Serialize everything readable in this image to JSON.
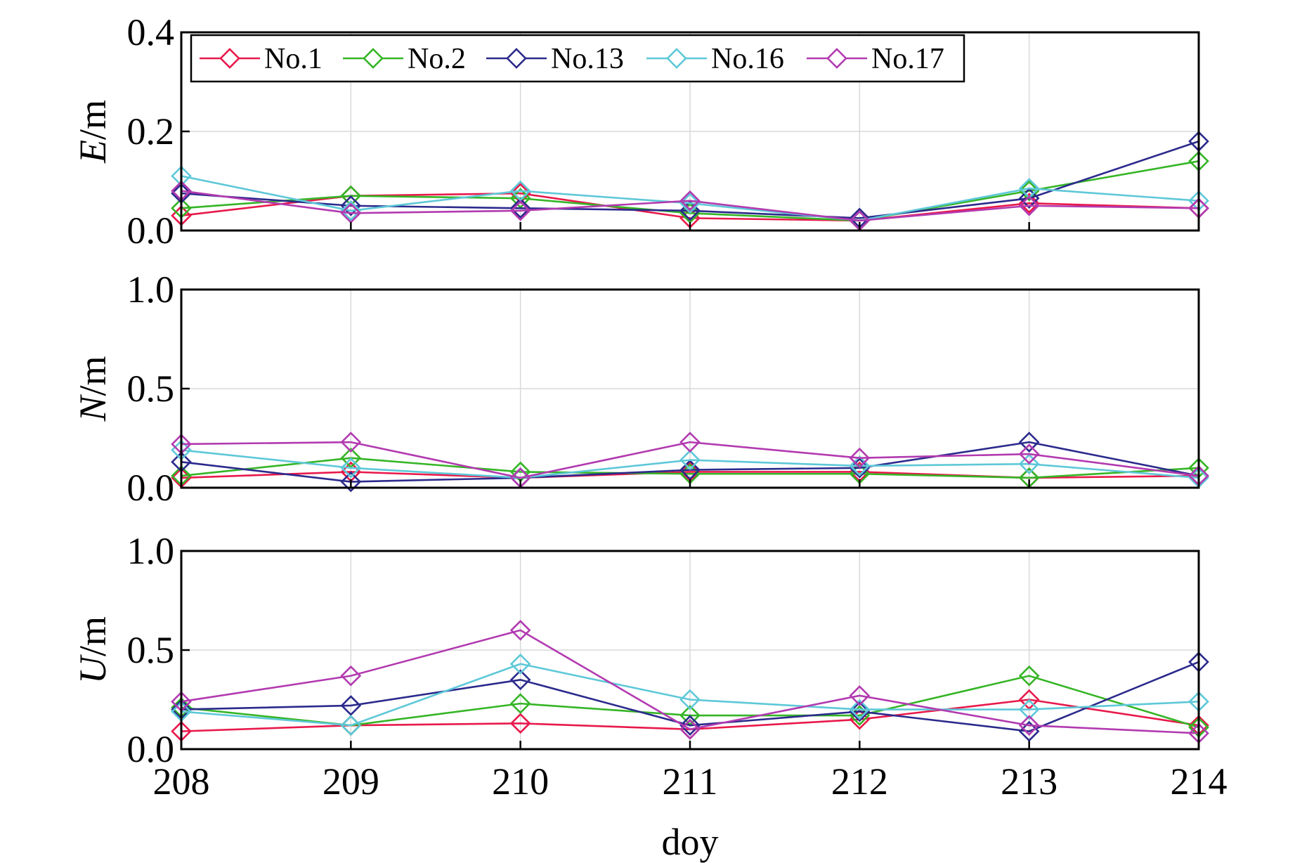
{
  "chart_data": {
    "type": "line",
    "x": [
      208,
      209,
      210,
      211,
      212,
      213,
      214
    ],
    "xlabel": "doy",
    "xlim": [
      208,
      214
    ],
    "grid": true,
    "legend": {
      "position": "top-left",
      "entries": [
        "No.1",
        "No.2",
        "No.13",
        "No.16",
        "No.17"
      ]
    },
    "colors": {
      "No.1": "#e8194b",
      "No.2": "#35b526",
      "No.13": "#2b2a8c",
      "No.16": "#5ec8d8",
      "No.17": "#b23ab0"
    },
    "marker": "diamond",
    "panels": [
      {
        "ylabel_var": "E",
        "ylabel_unit": "/m",
        "ylim": [
          0,
          0.4
        ],
        "yticks": [
          0,
          0.2,
          0.4
        ],
        "ytick_labels": [
          "0.0",
          "0.2",
          "0.4"
        ],
        "series": [
          {
            "name": "No.1",
            "values": [
              0.03,
              0.07,
              0.075,
              0.025,
              0.02,
              0.055,
              0.045
            ]
          },
          {
            "name": "No.2",
            "values": [
              0.045,
              0.07,
              0.065,
              0.035,
              0.02,
              0.08,
              0.14
            ]
          },
          {
            "name": "No.13",
            "values": [
              0.075,
              0.05,
              0.045,
              0.04,
              0.025,
              0.065,
              0.18
            ]
          },
          {
            "name": "No.16",
            "values": [
              0.11,
              0.04,
              0.08,
              0.055,
              0.02,
              0.085,
              0.06
            ]
          },
          {
            "name": "No.17",
            "values": [
              0.08,
              0.035,
              0.04,
              0.06,
              0.02,
              0.05,
              0.045
            ]
          }
        ]
      },
      {
        "ylabel_var": "N",
        "ylabel_unit": "/m",
        "ylim": [
          0,
          1.0
        ],
        "yticks": [
          0,
          0.5,
          1.0
        ],
        "ytick_labels": [
          "0.0",
          "0.5",
          "1.0"
        ],
        "series": [
          {
            "name": "No.1",
            "values": [
              0.05,
              0.08,
              0.05,
              0.08,
              0.08,
              0.05,
              0.06
            ]
          },
          {
            "name": "No.2",
            "values": [
              0.06,
              0.15,
              0.08,
              0.07,
              0.07,
              0.05,
              0.1
            ]
          },
          {
            "name": "No.13",
            "values": [
              0.13,
              0.03,
              0.05,
              0.09,
              0.1,
              0.23,
              0.06
            ]
          },
          {
            "name": "No.16",
            "values": [
              0.19,
              0.1,
              0.05,
              0.14,
              0.11,
              0.12,
              0.05
            ]
          },
          {
            "name": "No.17",
            "values": [
              0.22,
              0.23,
              0.05,
              0.23,
              0.15,
              0.17,
              0.06
            ]
          }
        ]
      },
      {
        "ylabel_var": "U",
        "ylabel_unit": "/m",
        "ylim": [
          0,
          1.0
        ],
        "yticks": [
          0,
          0.5,
          1.0
        ],
        "ytick_labels": [
          "0.0",
          "0.5",
          "1.0"
        ],
        "series": [
          {
            "name": "No.1",
            "values": [
              0.09,
              0.12,
              0.13,
              0.1,
              0.15,
              0.25,
              0.12
            ]
          },
          {
            "name": "No.2",
            "values": [
              0.21,
              0.12,
              0.23,
              0.17,
              0.17,
              0.37,
              0.11
            ]
          },
          {
            "name": "No.13",
            "values": [
              0.2,
              0.22,
              0.35,
              0.12,
              0.19,
              0.09,
              0.44
            ]
          },
          {
            "name": "No.16",
            "values": [
              0.19,
              0.12,
              0.43,
              0.25,
              0.2,
              0.2,
              0.24
            ]
          },
          {
            "name": "No.17",
            "values": [
              0.24,
              0.37,
              0.6,
              0.1,
              0.27,
              0.12,
              0.08
            ]
          }
        ]
      }
    ]
  }
}
